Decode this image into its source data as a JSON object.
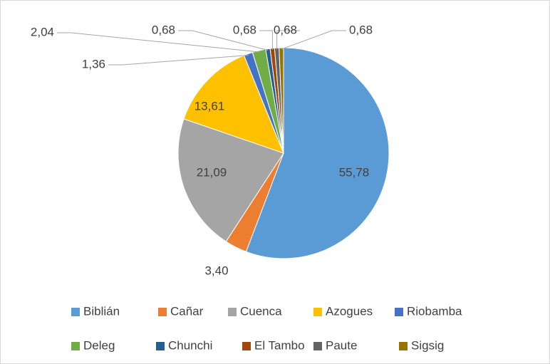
{
  "chart_data": {
    "type": "pie",
    "categories": [
      "Biblián",
      "Cañar",
      "Cuenca",
      "Azogues",
      "Riobamba",
      "Deleg",
      "Chunchi",
      "El Tambo",
      "Paute",
      "Sigsig"
    ],
    "values": [
      55.78,
      3.4,
      21.09,
      13.61,
      1.36,
      2.04,
      0.68,
      0.68,
      0.68,
      0.68
    ],
    "value_labels": [
      "55,78",
      "3,40",
      "21,09",
      "13,61",
      "1,36",
      "2,04",
      "0,68",
      "0,68",
      "0,68",
      "0,68"
    ],
    "colors": [
      "#5b9bd5",
      "#ed7d31",
      "#a5a5a5",
      "#ffc000",
      "#4472c4",
      "#70ad47",
      "#255e91",
      "#9e480e",
      "#636363",
      "#997300"
    ],
    "legend": "bottom"
  }
}
